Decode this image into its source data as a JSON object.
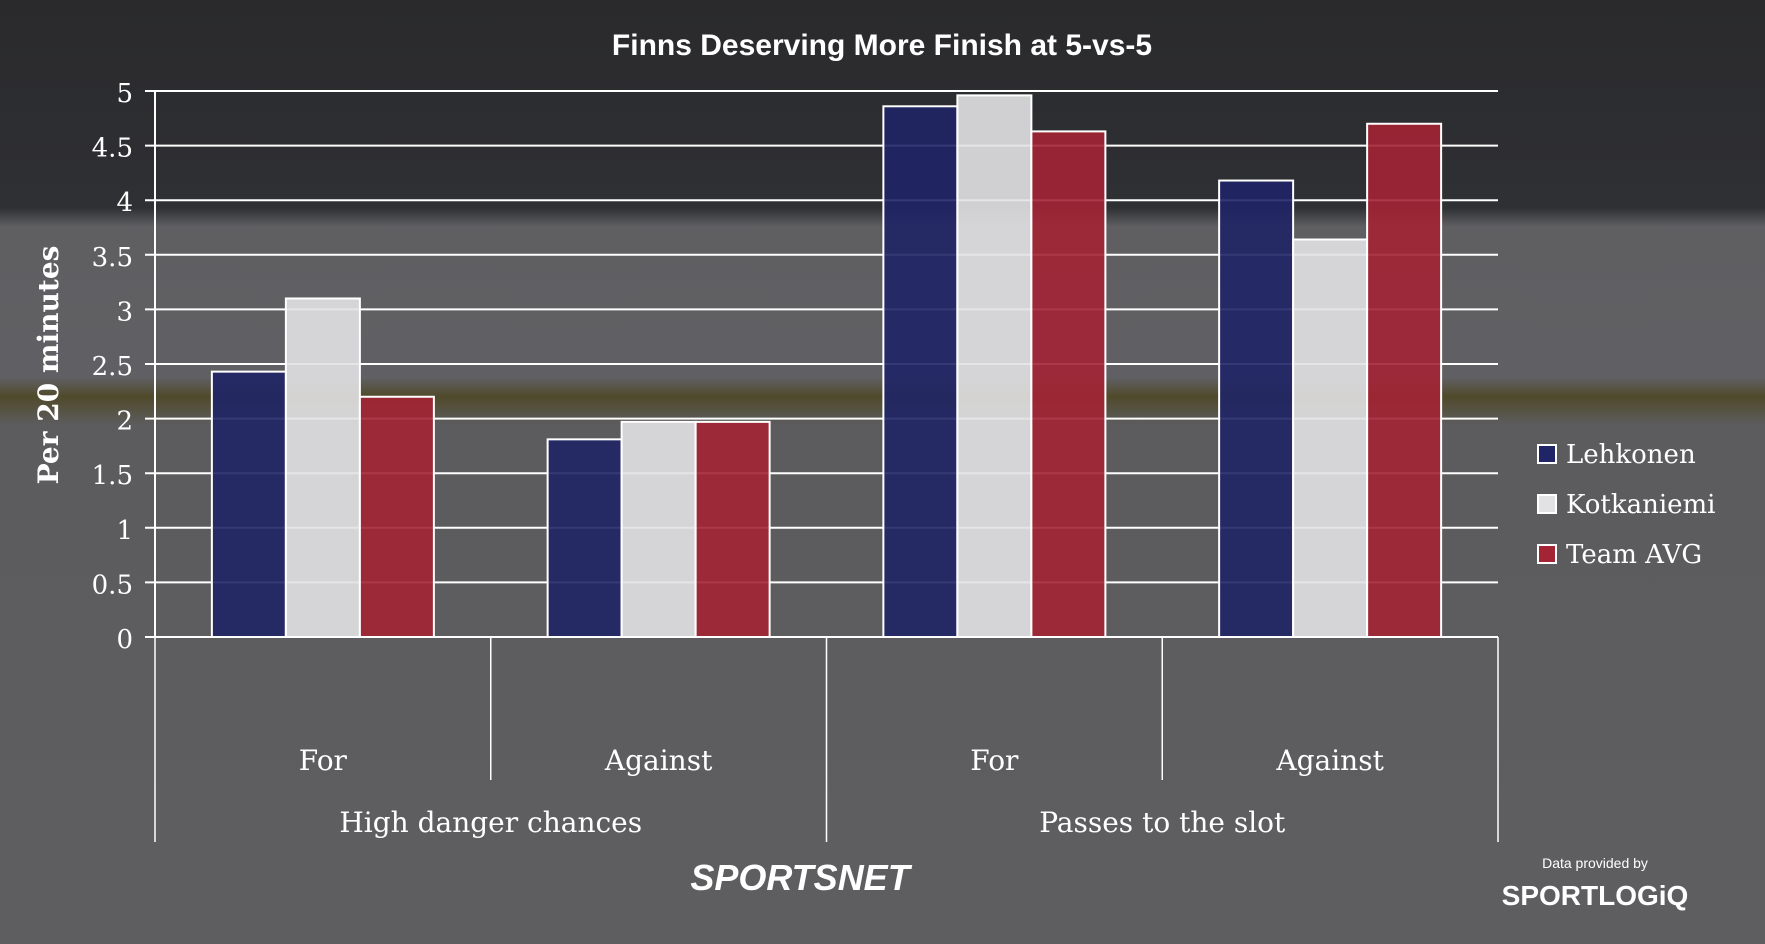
{
  "chart_data": {
    "type": "bar",
    "title": "Finns Deserving More Finish at 5-vs-5",
    "ylabel": "Per 20 minutes",
    "ylim": [
      0,
      5
    ],
    "yticks": [
      "0",
      "0.5",
      "1",
      "1.5",
      "2",
      "2.5",
      "3",
      "3.5",
      "4",
      "4.5",
      "5"
    ],
    "grid": true,
    "legend_position": "right",
    "groups": [
      {
        "label": "High danger chances",
        "categories": [
          "For",
          "Against"
        ]
      },
      {
        "label": "Passes to the slot",
        "categories": [
          "For",
          "Against"
        ]
      }
    ],
    "categories": [
      "For",
      "Against",
      "For",
      "Against"
    ],
    "series": [
      {
        "name": "Lehkonen",
        "color": "#1f2566",
        "values": [
          2.43,
          1.81,
          4.86,
          4.18
        ]
      },
      {
        "name": "Kotkaniemi",
        "color": "#e2e2e4",
        "values": [
          3.1,
          1.97,
          4.96,
          3.64
        ]
      },
      {
        "name": "Team AVG",
        "color": "#a32434",
        "values": [
          2.2,
          1.97,
          4.63,
          4.7
        ]
      }
    ]
  },
  "branding": {
    "sportsnet": "SPORTSNET",
    "provided_by": "Data provided by",
    "sportlogiq": "SPORTLOGiQ"
  }
}
